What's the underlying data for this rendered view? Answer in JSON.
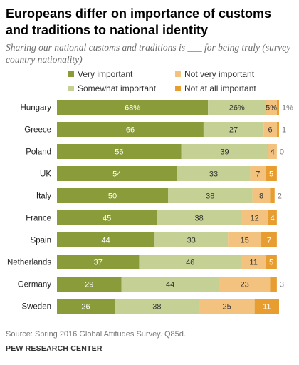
{
  "header": {
    "title": "Europeans differ on importance of customs and traditions to national identity",
    "subtitle": "Sharing our national customs and traditions is ___ for being truly (survey country nationality)"
  },
  "legend": [
    {
      "label": "Very important",
      "color": "#8a9b3a"
    },
    {
      "label": "Not very important",
      "color": "#f3c27f"
    },
    {
      "label": "Somewhat important",
      "color": "#c5d194"
    },
    {
      "label": "Not at all important",
      "color": "#e79d2f"
    }
  ],
  "footer": {
    "source": "Source: Spring 2016 Global Attitudes Survey. Q85d.",
    "org": "PEW RESEARCH CENTER"
  },
  "chart_data": {
    "type": "bar",
    "orientation": "horizontal",
    "stacked": true,
    "xlim": [
      0,
      100
    ],
    "grid": false,
    "categories": [
      "Hungary",
      "Greece",
      "Poland",
      "UK",
      "Italy",
      "France",
      "Spain",
      "Netherlands",
      "Germany",
      "Sweden"
    ],
    "series": [
      {
        "name": "Very important",
        "color": "#8a9b3a",
        "values": [
          68,
          66,
          56,
          54,
          50,
          45,
          44,
          37,
          29,
          26
        ],
        "labels": [
          "68%",
          "66",
          "56",
          "54",
          "50",
          "45",
          "44",
          "37",
          "29",
          "26"
        ]
      },
      {
        "name": "Somewhat important",
        "color": "#c5d194",
        "values": [
          26,
          27,
          39,
          33,
          38,
          38,
          33,
          46,
          44,
          38
        ],
        "labels": [
          "26%",
          "27",
          "39",
          "33",
          "38",
          "38",
          "33",
          "46",
          "44",
          "38"
        ]
      },
      {
        "name": "Not very important",
        "color": "#f3c27f",
        "values": [
          5,
          6,
          4,
          7,
          8,
          12,
          15,
          11,
          23,
          25
        ],
        "labels": [
          "5%",
          "6",
          "4",
          "7",
          "8",
          "12",
          "15",
          "11",
          "23",
          "25"
        ]
      },
      {
        "name": "Not at all important",
        "color": "#e79d2f",
        "values": [
          1,
          1,
          0,
          5,
          2,
          4,
          7,
          5,
          3,
          11
        ],
        "labels": [
          "1%",
          "1",
          "0",
          "5",
          "2",
          "4",
          "7",
          "5",
          "3",
          "11"
        ]
      }
    ]
  }
}
